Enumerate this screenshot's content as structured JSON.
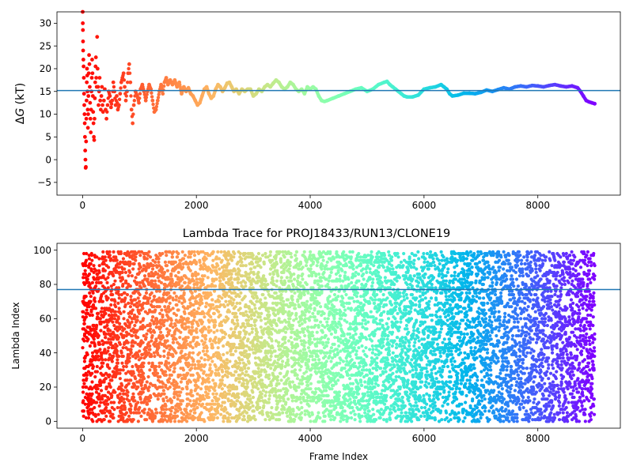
{
  "figure": {
    "background": "#ffffff"
  },
  "chart_data": [
    {
      "type": "scatter",
      "title": "",
      "xlabel": "",
      "ylabel": "ΔG (kT)",
      "ylabel_italic_part": "G",
      "xlim": [
        -450,
        9450
      ],
      "ylim": [
        -7.8,
        32.5
      ],
      "xticks": [
        0,
        2000,
        4000,
        6000,
        8000
      ],
      "yticks": [
        -5,
        0,
        5,
        10,
        15,
        20,
        25,
        30
      ],
      "colormap": "rainbow (red at frame 0 → violet at frame 9000)",
      "reference_line": {
        "y": 15.2,
        "color": "#1f77b4"
      },
      "series": [
        {
          "points": [
            [
              2,
              32.5
            ],
            [
              4,
              30.0
            ],
            [
              6,
              28.5
            ],
            [
              8,
              26.0
            ],
            [
              10,
              24.0
            ],
            [
              14,
              22.0
            ],
            [
              18,
              20.5
            ],
            [
              22,
              18.0
            ],
            [
              26,
              14.5
            ],
            [
              30,
              12.0
            ],
            [
              34,
              10.0
            ],
            [
              38,
              8.0
            ],
            [
              42,
              5.0
            ],
            [
              46,
              2.0
            ],
            [
              50,
              0.0
            ],
            [
              54,
              -1.8
            ],
            [
              58,
              -1.6
            ],
            [
              62,
              4.0
            ],
            [
              66,
              9.0
            ],
            [
              70,
              13.0
            ],
            [
              74,
              17.0
            ],
            [
              78,
              20.0
            ],
            [
              82,
              18.5
            ],
            [
              86,
              15.0
            ],
            [
              90,
              11.0
            ],
            [
              94,
              7.0
            ],
            [
              98,
              10.0
            ],
            [
              102,
              14.0
            ],
            [
              108,
              19.0
            ],
            [
              114,
              23.0
            ],
            [
              120,
              21.0
            ],
            [
              126,
              16.0
            ],
            [
              132,
              12.5
            ],
            [
              138,
              9.0
            ],
            [
              144,
              6.0
            ],
            [
              150,
              11.0
            ],
            [
              156,
              15.0
            ],
            [
              162,
              18.0
            ],
            [
              168,
              22.0
            ],
            [
              174,
              19.0
            ],
            [
              180,
              14.0
            ],
            [
              186,
              10.5
            ],
            [
              192,
              8.0
            ],
            [
              198,
              5.0
            ],
            [
              204,
              4.3
            ],
            [
              210,
              9.0
            ],
            [
              216,
              13.5
            ],
            [
              222,
              17.0
            ],
            [
              228,
              20.5
            ],
            [
              234,
              22.5
            ],
            [
              240,
              18.0
            ],
            [
              248,
              16.0
            ],
            [
              256,
              27.0
            ],
            [
              264,
              20.0
            ],
            [
              272,
              16.0
            ],
            [
              280,
              12.0
            ],
            [
              290,
              15.0
            ],
            [
              300,
              18.0
            ],
            [
              310,
              13.0
            ],
            [
              320,
              11.0
            ],
            [
              330,
              14.0
            ],
            [
              340,
              16.0
            ],
            [
              350,
              12.0
            ],
            [
              360,
              10.5
            ],
            [
              375,
              13.0
            ],
            [
              390,
              15.5
            ],
            [
              405,
              11.0
            ],
            [
              420,
              9.0
            ],
            [
              440,
              12.0
            ],
            [
              460,
              15.0
            ],
            [
              480,
              14.0
            ],
            [
              500,
              11.5
            ],
            [
              520,
              13.0
            ],
            [
              540,
              17.0
            ],
            [
              560,
              15.0
            ],
            [
              580,
              12.0
            ],
            [
              600,
              14.0
            ],
            [
              620,
              11.0
            ],
            [
              640,
              12.0
            ],
            [
              660,
              14.5
            ],
            [
              680,
              17.0
            ],
            [
              700,
              18.0
            ],
            [
              720,
              19.0
            ],
            [
              740,
              16.0
            ],
            [
              760,
              13.0
            ],
            [
              780,
              15.0
            ],
            [
              800,
              19.0
            ],
            [
              820,
              21.0
            ],
            [
              840,
              17.0
            ],
            [
              860,
              11.0
            ],
            [
              880,
              8.0
            ],
            [
              900,
              12.0
            ],
            [
              930,
              15.0
            ],
            [
              960,
              14.0
            ],
            [
              990,
              12.5
            ],
            [
              1020,
              15.5
            ],
            [
              1050,
              16.5
            ],
            [
              1080,
              15.0
            ],
            [
              1110,
              13.0
            ],
            [
              1140,
              15.0
            ],
            [
              1170,
              16.5
            ],
            [
              1200,
              15.5
            ],
            [
              1230,
              13.0
            ],
            [
              1260,
              10.5
            ],
            [
              1290,
              11.0
            ],
            [
              1320,
              13.0
            ],
            [
              1350,
              15.0
            ],
            [
              1380,
              16.5
            ],
            [
              1410,
              14.5
            ],
            [
              1440,
              17.0
            ],
            [
              1470,
              18.0
            ],
            [
              1500,
              16.5
            ],
            [
              1540,
              17.5
            ],
            [
              1580,
              16.5
            ],
            [
              1620,
              17.5
            ],
            [
              1660,
              16.0
            ],
            [
              1700,
              17.0
            ],
            [
              1740,
              14.5
            ],
            [
              1780,
              16.0
            ],
            [
              1820,
              15.0
            ],
            [
              1860,
              15.8
            ],
            [
              1900,
              14.5
            ],
            [
              1940,
              14.0
            ],
            [
              1980,
              13.0
            ],
            [
              2020,
              12.0
            ],
            [
              2060,
              12.5
            ],
            [
              2100,
              14.0
            ],
            [
              2140,
              15.5
            ],
            [
              2180,
              16.0
            ],
            [
              2220,
              14.5
            ],
            [
              2260,
              13.5
            ],
            [
              2300,
              14.0
            ],
            [
              2340,
              15.5
            ],
            [
              2380,
              16.5
            ],
            [
              2420,
              16.0
            ],
            [
              2460,
              15.0
            ],
            [
              2500,
              15.8
            ],
            [
              2540,
              16.8
            ],
            [
              2580,
              17.0
            ],
            [
              2620,
              16.0
            ],
            [
              2660,
              15.0
            ],
            [
              2700,
              15.5
            ],
            [
              2750,
              14.5
            ],
            [
              2800,
              15.5
            ],
            [
              2850,
              15.0
            ],
            [
              2900,
              15.5
            ],
            [
              2950,
              15.5
            ],
            [
              3000,
              14.0
            ],
            [
              3050,
              14.5
            ],
            [
              3100,
              15.5
            ],
            [
              3150,
              15.0
            ],
            [
              3200,
              16.0
            ],
            [
              3250,
              16.5
            ],
            [
              3300,
              16.0
            ],
            [
              3350,
              16.8
            ],
            [
              3400,
              17.5
            ],
            [
              3450,
              17.0
            ],
            [
              3500,
              16.0
            ],
            [
              3550,
              15.5
            ],
            [
              3600,
              16.0
            ],
            [
              3650,
              17.0
            ],
            [
              3700,
              16.5
            ],
            [
              3750,
              15.5
            ],
            [
              3800,
              15.0
            ],
            [
              3850,
              15.5
            ],
            [
              3900,
              14.5
            ],
            [
              3950,
              16.0
            ],
            [
              4000,
              15.5
            ],
            [
              4050,
              16.0
            ],
            [
              4100,
              15.5
            ],
            [
              4150,
              14.0
            ],
            [
              4200,
              13.0
            ],
            [
              4250,
              12.8
            ],
            [
              4300,
              13.0
            ],
            [
              4400,
              13.5
            ],
            [
              4500,
              14.0
            ],
            [
              4600,
              14.5
            ],
            [
              4700,
              15.0
            ],
            [
              4800,
              15.5
            ],
            [
              4900,
              15.8
            ],
            [
              5000,
              15.0
            ],
            [
              5100,
              15.5
            ],
            [
              5200,
              16.5
            ],
            [
              5300,
              17.0
            ],
            [
              5350,
              17.2
            ],
            [
              5400,
              16.5
            ],
            [
              5450,
              16.0
            ],
            [
              5500,
              15.5
            ],
            [
              5550,
              15.0
            ],
            [
              5600,
              14.5
            ],
            [
              5650,
              14.0
            ],
            [
              5700,
              13.8
            ],
            [
              5800,
              13.8
            ],
            [
              5900,
              14.2
            ],
            [
              6000,
              15.5
            ],
            [
              6100,
              15.8
            ],
            [
              6200,
              16.0
            ],
            [
              6300,
              16.5
            ],
            [
              6350,
              16.0
            ],
            [
              6400,
              15.5
            ],
            [
              6450,
              14.5
            ],
            [
              6500,
              14.0
            ],
            [
              6600,
              14.2
            ],
            [
              6700,
              14.6
            ],
            [
              6800,
              14.6
            ],
            [
              6900,
              14.5
            ],
            [
              7000,
              14.8
            ],
            [
              7100,
              15.3
            ],
            [
              7200,
              15.0
            ],
            [
              7300,
              15.4
            ],
            [
              7400,
              15.8
            ],
            [
              7500,
              15.5
            ],
            [
              7600,
              16.0
            ],
            [
              7700,
              16.2
            ],
            [
              7800,
              16.0
            ],
            [
              7900,
              16.3
            ],
            [
              8000,
              16.2
            ],
            [
              8100,
              16.0
            ],
            [
              8200,
              16.3
            ],
            [
              8300,
              16.5
            ],
            [
              8400,
              16.2
            ],
            [
              8500,
              16.0
            ],
            [
              8600,
              16.2
            ],
            [
              8700,
              15.8
            ],
            [
              8750,
              15.0
            ],
            [
              8800,
              14.0
            ],
            [
              8850,
              13.0
            ],
            [
              8900,
              12.7
            ],
            [
              8950,
              12.5
            ],
            [
              9000,
              12.3
            ]
          ]
        }
      ]
    },
    {
      "type": "scatter",
      "title": "Lambda Trace for PROJ18433/RUN13/CLONE19",
      "xlabel": "Frame Index",
      "ylabel": "Lambda Index",
      "xlim": [
        -450,
        9450
      ],
      "ylim": [
        -4,
        104
      ],
      "xticks": [
        0,
        2000,
        4000,
        6000,
        8000
      ],
      "yticks": [
        0,
        20,
        40,
        60,
        80,
        100
      ],
      "colormap": "rainbow (red at frame 0 → violet at frame 9000)",
      "reference_line": {
        "y": 77,
        "color": "#1f77b4"
      },
      "series": [
        {
          "description": "approximately 9000 frames; each frame visits one lambda state between 0 and 99, spread roughly uniformly across the whole range",
          "x_range": [
            0,
            9000
          ],
          "y_range": [
            0,
            99
          ],
          "point_count": 9000
        }
      ]
    }
  ]
}
